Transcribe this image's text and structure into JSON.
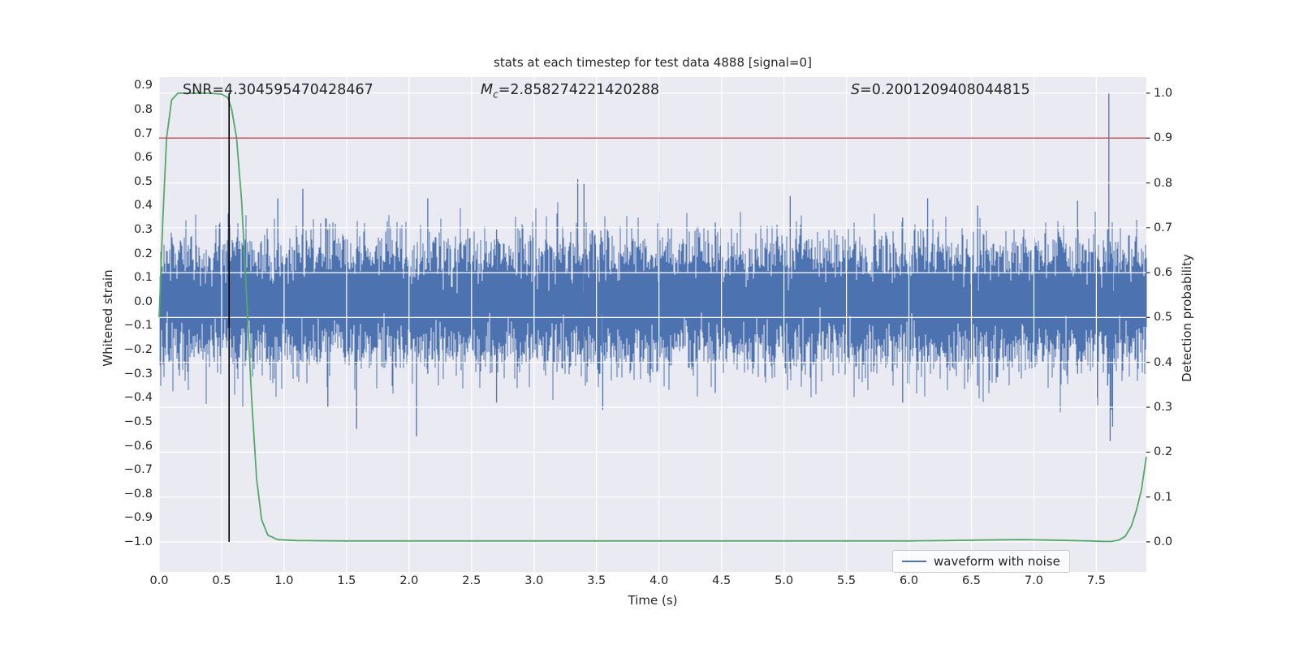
{
  "chart_data": {
    "type": "line",
    "title": "stats at each timestep for test data 4888 [signal=0]",
    "xlabel": "Time (s)",
    "ylabel_left": "Whitened strain",
    "ylabel_right": "Detection probability",
    "background": "#eaeaf2",
    "grid_color": "#ffffff",
    "x_range": [
      0,
      7.9
    ],
    "strain_ylim": [
      -1.125,
      0.935
    ],
    "prob_ylim": [
      -0.067,
      1.036
    ],
    "x_ticks": [
      0.0,
      0.5,
      1.0,
      1.5,
      2.0,
      2.5,
      3.0,
      3.5,
      4.0,
      4.5,
      5.0,
      5.5,
      6.0,
      6.5,
      7.0,
      7.5
    ],
    "left_ticks": [
      0.9,
      0.8,
      0.7,
      0.6,
      0.5,
      0.4,
      0.3,
      0.2,
      0.1,
      0.0,
      -0.1,
      -0.2,
      -0.3,
      -0.4,
      -0.5,
      -0.6,
      -0.7,
      -0.8,
      -0.9,
      -1.0
    ],
    "right_ticks": [
      1.0,
      0.9,
      0.8,
      0.7,
      0.6,
      0.5,
      0.4,
      0.3,
      0.2,
      0.1,
      0.0
    ],
    "threshold": {
      "value": 0.9,
      "axis": "probability",
      "color": "#c44e52"
    },
    "event_time_marker": {
      "x": 0.56,
      "color": "#000000",
      "prob_span": [
        0.0,
        1.0
      ]
    },
    "detection_probability": {
      "color": "#55a868",
      "points": [
        [
          0.0,
          0.5
        ],
        [
          0.03,
          0.72
        ],
        [
          0.06,
          0.9
        ],
        [
          0.1,
          0.985
        ],
        [
          0.15,
          1.0
        ],
        [
          0.25,
          1.0
        ],
        [
          0.4,
          1.0
        ],
        [
          0.5,
          0.998
        ],
        [
          0.55,
          0.99
        ],
        [
          0.58,
          0.965
        ],
        [
          0.62,
          0.9
        ],
        [
          0.66,
          0.76
        ],
        [
          0.7,
          0.55
        ],
        [
          0.74,
          0.32
        ],
        [
          0.78,
          0.14
        ],
        [
          0.82,
          0.05
        ],
        [
          0.87,
          0.015
        ],
        [
          0.95,
          0.005
        ],
        [
          1.1,
          0.003
        ],
        [
          1.5,
          0.002
        ],
        [
          2.0,
          0.002
        ],
        [
          2.5,
          0.002
        ],
        [
          3.0,
          0.002
        ],
        [
          3.5,
          0.002
        ],
        [
          4.0,
          0.002
        ],
        [
          4.5,
          0.002
        ],
        [
          5.0,
          0.002
        ],
        [
          5.5,
          0.002
        ],
        [
          6.0,
          0.002
        ],
        [
          6.3,
          0.003
        ],
        [
          6.6,
          0.004
        ],
        [
          6.9,
          0.005
        ],
        [
          7.1,
          0.004
        ],
        [
          7.3,
          0.003
        ],
        [
          7.45,
          0.002
        ],
        [
          7.55,
          0.001
        ],
        [
          7.62,
          0.001
        ],
        [
          7.68,
          0.004
        ],
        [
          7.73,
          0.012
        ],
        [
          7.78,
          0.035
        ],
        [
          7.82,
          0.07
        ],
        [
          7.86,
          0.115
        ],
        [
          7.9,
          0.19
        ]
      ]
    },
    "waveform": {
      "color": "#4c72b0",
      "noise_sigma": 0.12,
      "seed": 4888,
      "samples_per_column": 13,
      "spikes": [
        [
          0.95,
          -0.25,
          0.43
        ],
        [
          1.15,
          -0.2,
          0.47
        ],
        [
          1.35,
          -0.44,
          0.3
        ],
        [
          1.58,
          -0.53,
          0.22
        ],
        [
          2.06,
          -0.56,
          0.18
        ],
        [
          2.15,
          -0.3,
          0.43
        ],
        [
          2.7,
          -0.42,
          0.3
        ],
        [
          3.35,
          -0.22,
          0.51
        ],
        [
          3.4,
          -0.25,
          0.49
        ],
        [
          3.55,
          -0.45,
          0.25
        ],
        [
          4.0,
          -0.3,
          0.46
        ],
        [
          4.45,
          -0.38,
          0.33
        ],
        [
          5.05,
          -0.28,
          0.44
        ],
        [
          5.95,
          -0.42,
          0.35
        ],
        [
          6.15,
          -0.25,
          0.43
        ],
        [
          6.55,
          -0.35,
          0.4
        ],
        [
          7.35,
          -0.3,
          0.42
        ],
        [
          7.59,
          -0.35,
          0.3
        ],
        [
          7.6,
          -0.3,
          0.87
        ],
        [
          7.61,
          -0.58,
          0.25
        ],
        [
          7.62,
          -0.45,
          0.2
        ],
        [
          7.63,
          -0.52,
          0.18
        ]
      ]
    },
    "legend": {
      "label": "waveform with noise",
      "location": "lower right"
    }
  },
  "annotations": {
    "snr": {
      "label": "SNR",
      "value": "=4.304595470428467"
    },
    "chirp_mass": {
      "label": "M",
      "subscript": "c",
      "value": "=2.858274221420288"
    },
    "score": {
      "label": "S",
      "value": "=0.2001209408044815"
    }
  }
}
